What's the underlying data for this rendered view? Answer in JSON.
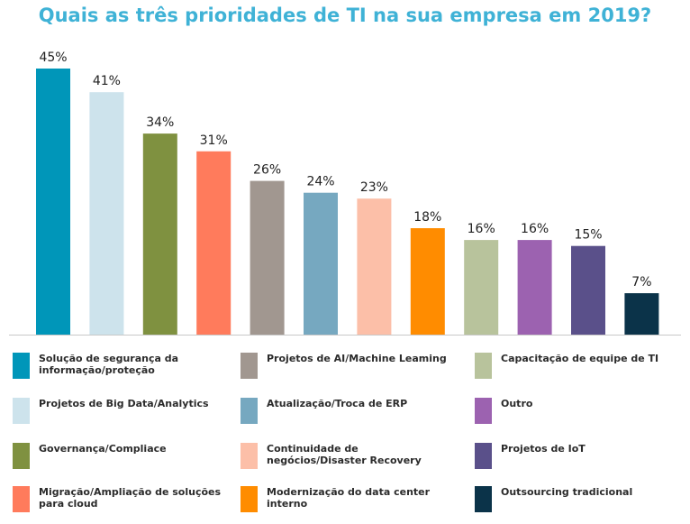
{
  "chart_data": {
    "type": "bar",
    "title": "Quais as três prioridades de TI na sua empresa em 2019?",
    "ylim": [
      0,
      45
    ],
    "categories": [
      "Solução de segurança da informação/proteção",
      "Projetos de Big Data/Analytics",
      "Governança/Compliace",
      "Migração/Ampliação de soluções para cloud",
      "Projetos de AI/Machine Leaming",
      "Atualização/Troca de ERP",
      "Continuidade de negócios/Disaster Recovery",
      "Modernização do data center interno",
      "Capacitação de equipe de TI",
      "Outro",
      "Projetos de IoT",
      "Outsourcing tradicional"
    ],
    "values": [
      45,
      41,
      34,
      31,
      26,
      24,
      23,
      18,
      16,
      16,
      15,
      7
    ],
    "value_labels": [
      "45%",
      "41%",
      "34%",
      "31%",
      "26%",
      "24%",
      "23%",
      "18%",
      "16%",
      "16%",
      "15%",
      "7%"
    ],
    "colors": [
      "#0096b9",
      "#cde3ec",
      "#7f9140",
      "#ff7b5c",
      "#a19790",
      "#76a8c0",
      "#fcbfa8",
      "#ff8c00",
      "#b8c39c",
      "#9c62b0",
      "#5a508a",
      "#0b3349"
    ],
    "legend": {
      "position": "bottom",
      "columns": [
        [
          "Solução de segurança da informação/proteção",
          "Projetos de Big Data/Analytics",
          "Governança/Compliace",
          "Migração/Ampliação de soluções para cloud"
        ],
        [
          "Projetos de AI/Machine Leaming",
          "Atualização/Troca de ERP",
          "Continuidade de negócios/Disaster Recovery",
          "Modernização do data center interno"
        ],
        [
          "Capacitação de equipe de TI",
          "Outro",
          "Projetos de IoT",
          "Outsourcing tradicional"
        ]
      ]
    },
    "grid": false,
    "xlabel": "",
    "ylabel": ""
  },
  "title_color": "#3fb2d6"
}
